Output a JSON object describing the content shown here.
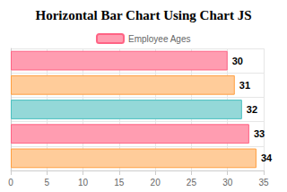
{
  "chart_data": {
    "type": "bar",
    "title": "Horizontal Bar Chart Using Chart JS",
    "orientation": "horizontal",
    "categories": [
      null,
      null,
      null,
      null,
      null
    ],
    "series": [
      {
        "name": "Employee Ages",
        "values": [
          30,
          31,
          32,
          33,
          34
        ],
        "colors": [
          "#ff9db1",
          "#ffcc9a",
          "#94d8d8",
          "#ff9db1",
          "#ffcc9a"
        ]
      }
    ],
    "xlim": [
      0,
      35
    ],
    "xticks": [
      0,
      5,
      10,
      15,
      20,
      25,
      30,
      35
    ],
    "grid": true,
    "legend": "top",
    "data_labels": true
  }
}
